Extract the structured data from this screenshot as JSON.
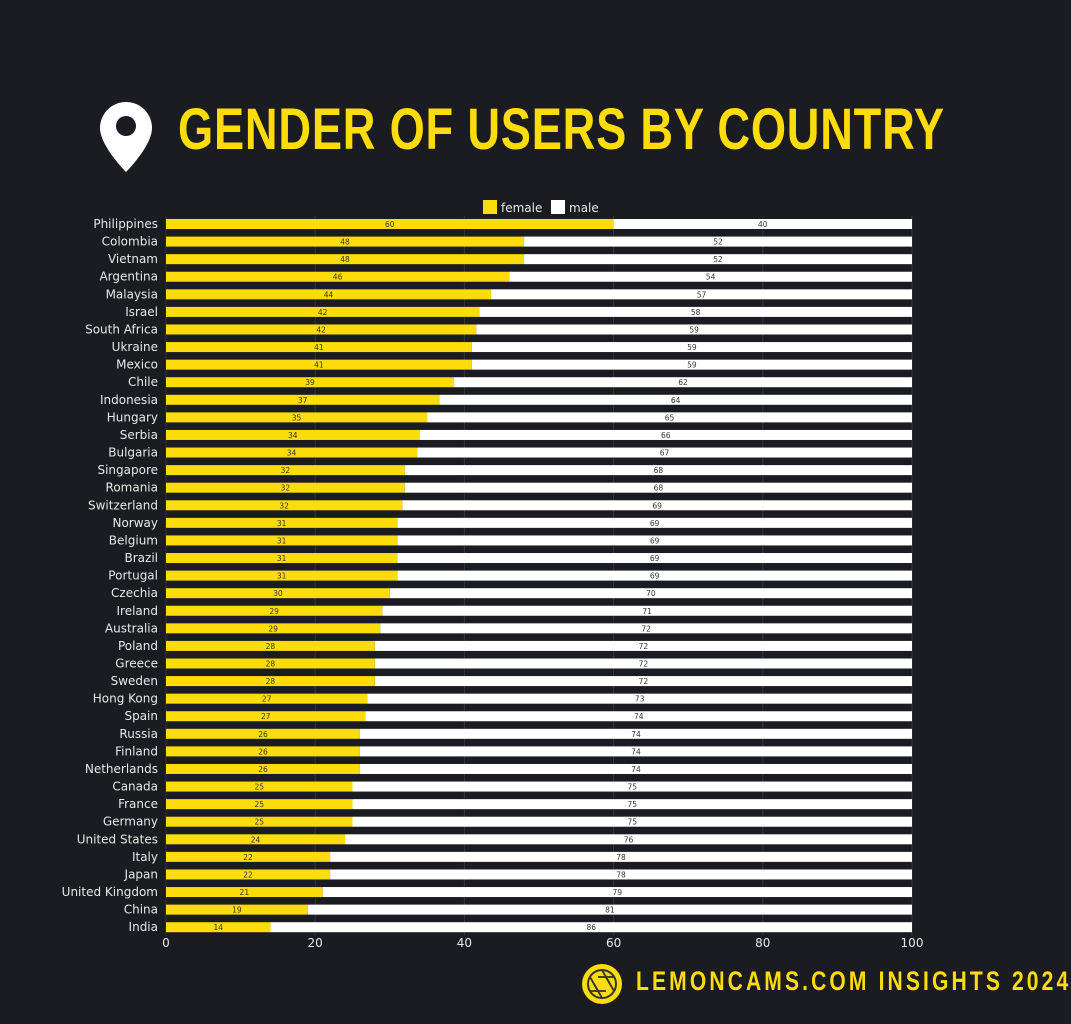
{
  "title": "GENDER OF USERS BY COUNTRY",
  "footer": "LEMONCAMS.COM INSIGHTS 2024",
  "colors": {
    "background": "#1b1c21",
    "female": "#fcdc0a",
    "male": "#ffffff",
    "accent": "#fcdc0a"
  },
  "icons": {
    "header": "map-pin-icon",
    "footer": "camera-aperture-logo-icon"
  },
  "chart_data": {
    "type": "bar",
    "orientation": "horizontal",
    "stacked": true,
    "title": "",
    "xlabel": "",
    "ylabel": "",
    "xlim": [
      0,
      100
    ],
    "xticks": [
      0,
      20,
      40,
      60,
      80,
      100
    ],
    "grid": true,
    "legend_position": "top",
    "categories": [
      "Philippines",
      "Colombia",
      "Vietnam",
      "Argentina",
      "Malaysia",
      "Israel",
      "South Africa",
      "Ukraine",
      "Mexico",
      "Chile",
      "Indonesia",
      "Hungary",
      "Serbia",
      "Bulgaria",
      "Singapore",
      "Romania",
      "Switzerland",
      "Norway",
      "Belgium",
      "Brazil",
      "Portugal",
      "Czechia",
      "Ireland",
      "Australia",
      "Poland",
      "Greece",
      "Sweden",
      "Hong Kong",
      "Spain",
      "Russia",
      "Finland",
      "Netherlands",
      "Canada",
      "France",
      "Germany",
      "United States",
      "Italy",
      "Japan",
      "United Kingdom",
      "China",
      "India"
    ],
    "series": [
      {
        "name": "female",
        "color": "#fcdc0a",
        "values": [
          60,
          48,
          48,
          46,
          44,
          42,
          42,
          41,
          41,
          39,
          37,
          35,
          34,
          34,
          32,
          32,
          32,
          31,
          31,
          31,
          31,
          30,
          29,
          29,
          28,
          28,
          28,
          27,
          27,
          26,
          26,
          26,
          25,
          25,
          25,
          24,
          22,
          22,
          21,
          19,
          14
        ]
      },
      {
        "name": "male",
        "color": "#ffffff",
        "values": [
          40,
          52,
          52,
          54,
          57,
          58,
          59,
          59,
          59,
          62,
          64,
          65,
          66,
          67,
          68,
          68,
          69,
          69,
          69,
          69,
          69,
          70,
          71,
          72,
          72,
          72,
          72,
          73,
          74,
          74,
          74,
          74,
          75,
          75,
          75,
          76,
          78,
          78,
          79,
          81,
          86
        ]
      }
    ]
  }
}
